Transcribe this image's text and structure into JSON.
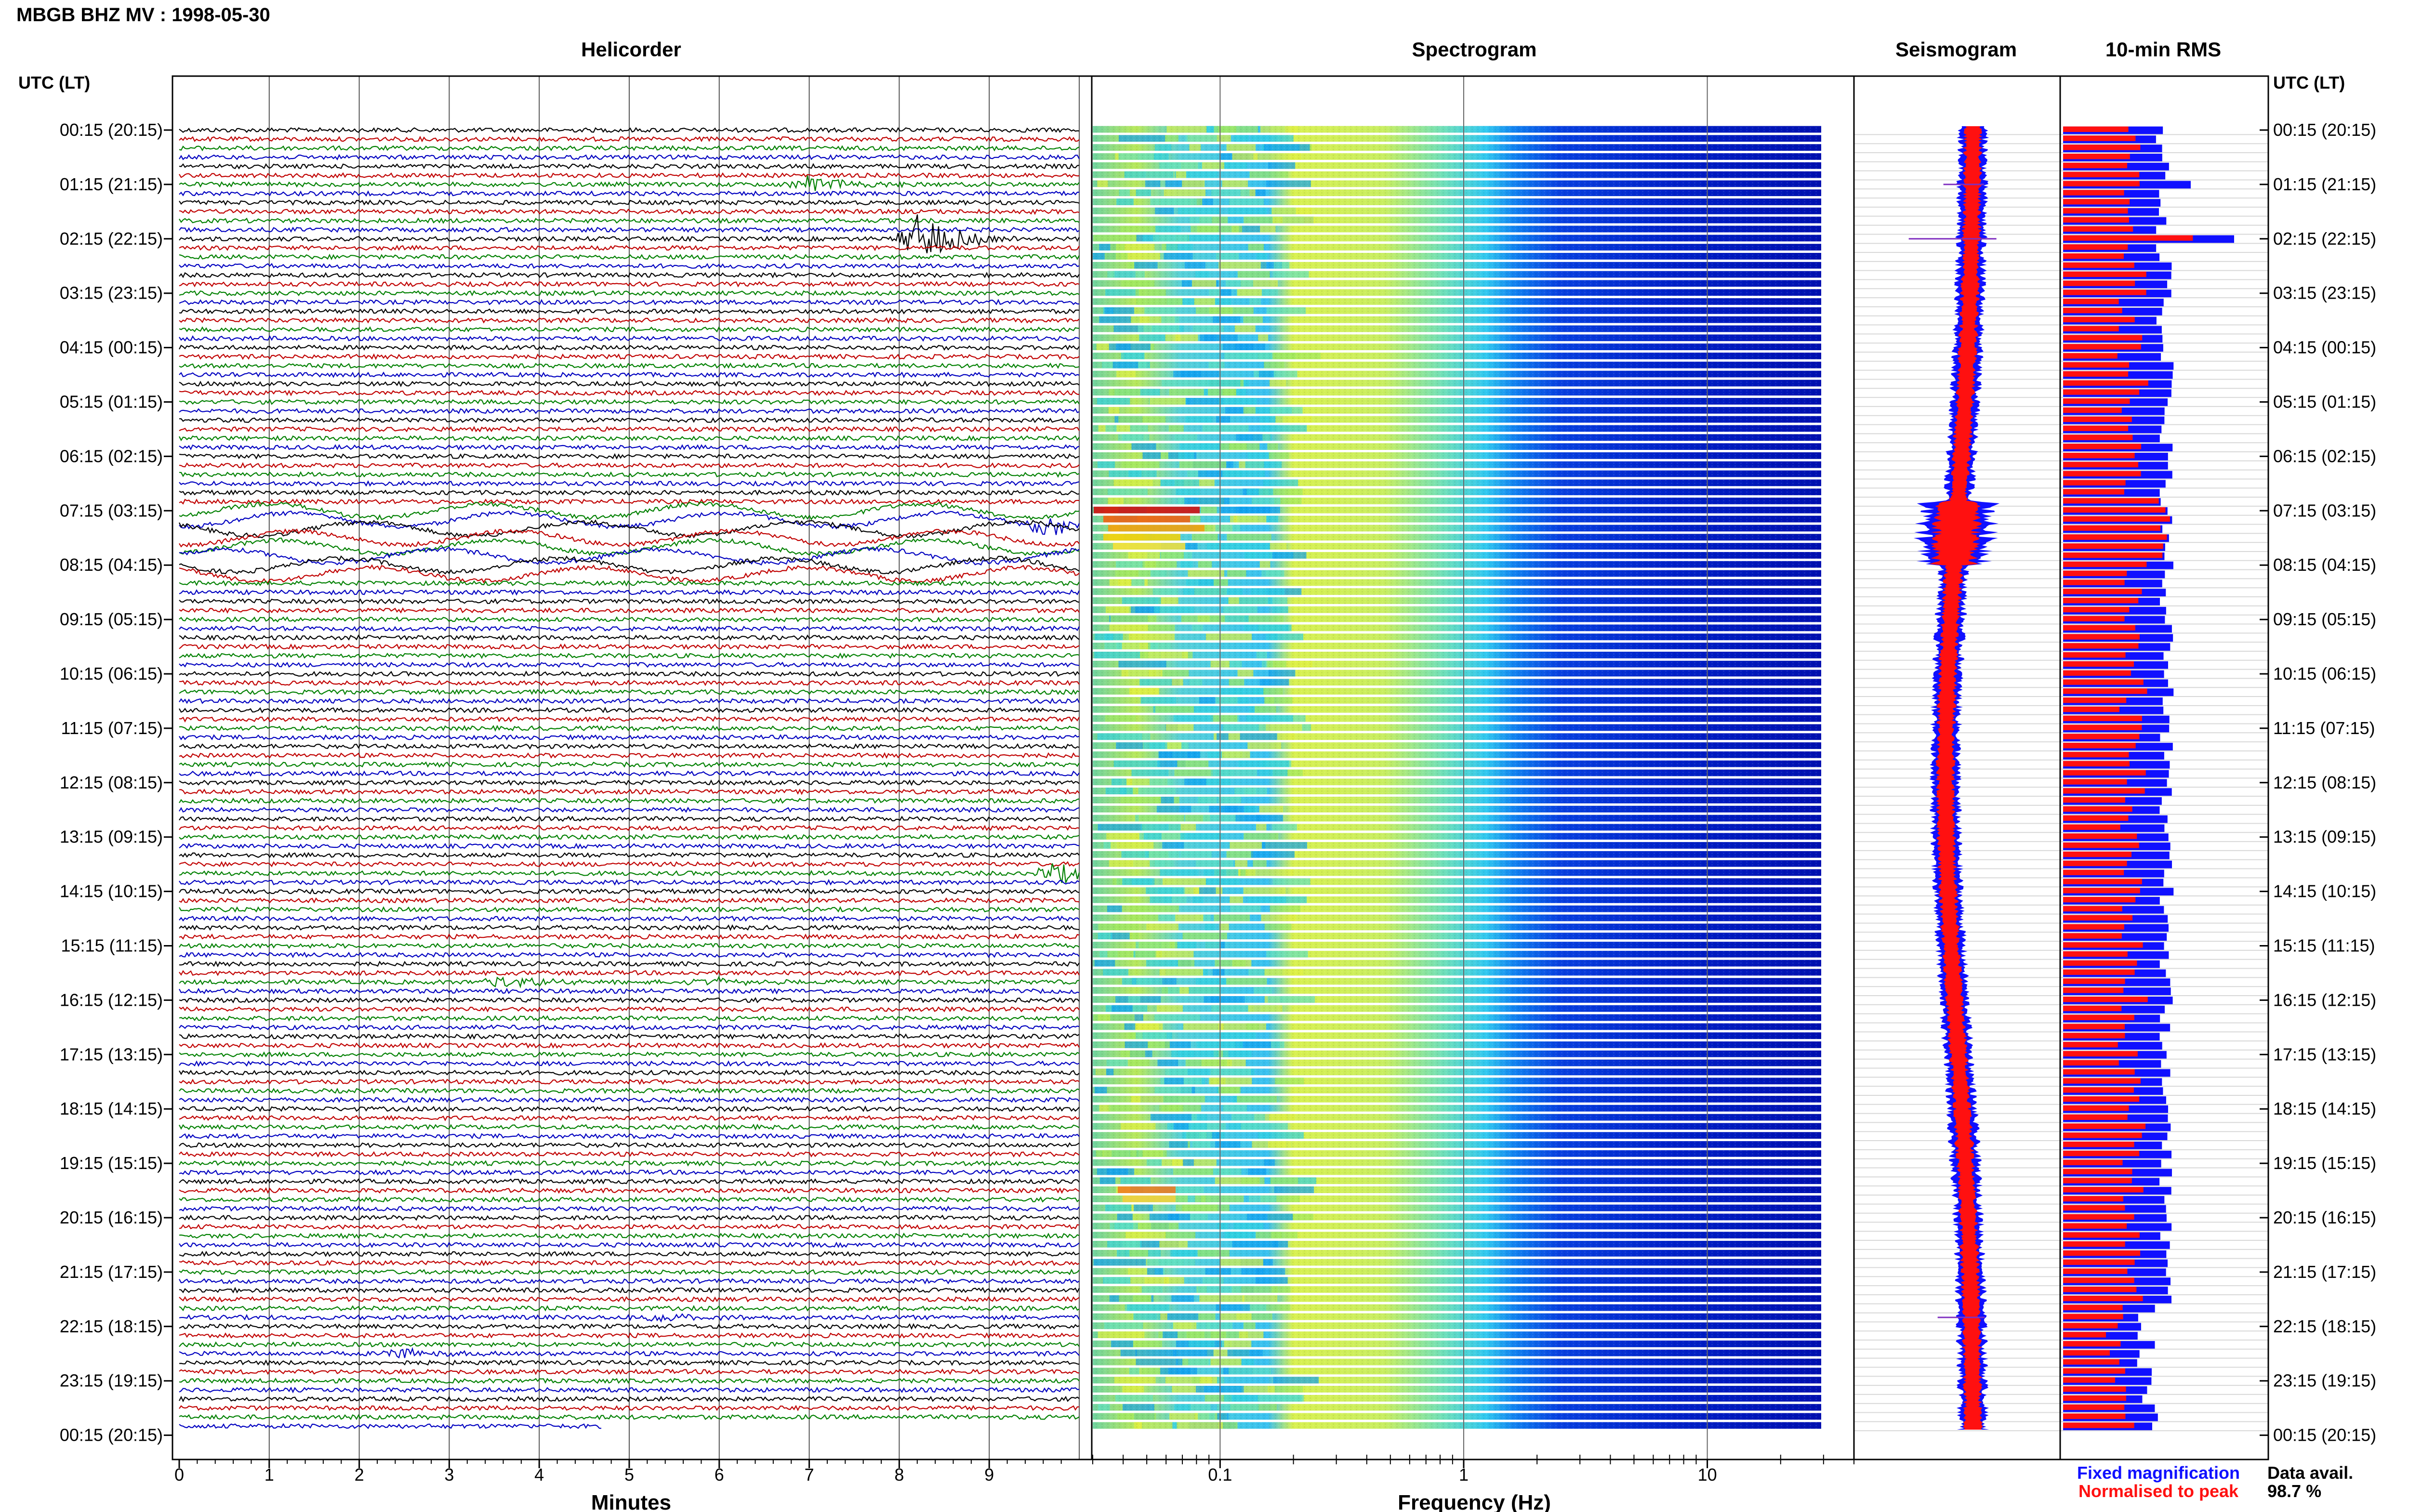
{
  "header": {
    "title": "MBGB BHZ MV : 1998-05-30"
  },
  "panels": {
    "helicorder": "Helicorder",
    "spectrogram": "Spectrogram",
    "seismogram": "Seismogram",
    "rms": "10-min RMS"
  },
  "axes": {
    "left_label": "UTC (LT)",
    "right_label": "UTC (LT)",
    "helicorder_xlabel": "Minutes",
    "spectrogram_xlabel": "Frequency (Hz)"
  },
  "legend": {
    "fixed": "Fixed magnification",
    "normalised": "Normalised to peak",
    "colors": {
      "fixed": "#1010ff",
      "normalised": "#ff1010"
    }
  },
  "availability": {
    "label": "Data avail.",
    "value": "98.7 %"
  },
  "chart_data": {
    "type": "heatmap",
    "title": "MBGB BHZ MV : 1998-05-30",
    "time_labels": [
      "00:15 (20:15)",
      "01:15 (21:15)",
      "02:15 (22:15)",
      "03:15 (23:15)",
      "04:15 (00:15)",
      "05:15 (01:15)",
      "06:15 (02:15)",
      "07:15 (03:15)",
      "08:15 (04:15)",
      "09:15 (05:15)",
      "10:15 (06:15)",
      "11:15 (07:15)",
      "12:15 (08:15)",
      "13:15 (09:15)",
      "14:15 (10:15)",
      "15:15 (11:15)",
      "16:15 (12:15)",
      "17:15 (13:15)",
      "18:15 (14:15)",
      "19:15 (15:15)",
      "20:15 (16:15)",
      "21:15 (17:15)",
      "22:15 (18:15)",
      "23:15 (19:15)",
      "00:15 (20:15)"
    ],
    "helicorder": {
      "xlabel": "Minutes",
      "xticks": [
        "0",
        "1",
        "2",
        "3",
        "4",
        "5",
        "6",
        "7",
        "8",
        "9"
      ],
      "xlim": [
        0,
        10
      ],
      "traces_per_hour": 6,
      "trace_colors": [
        "#000000",
        "#c00000",
        "#008000",
        "#0000c0"
      ],
      "events": [
        {
          "trace": 6,
          "minute": 7.0,
          "amplitude": 0.6
        },
        {
          "trace": 12,
          "minute": 8.2,
          "amplitude": 1.6
        },
        {
          "trace": 43,
          "minute": 9.6,
          "amplitude": 0.6
        },
        {
          "trace": 82,
          "minute": 9.7,
          "amplitude": 0.7
        },
        {
          "trace": 94,
          "minute": 3.6,
          "amplitude": 0.4
        },
        {
          "trace": 94,
          "minute": 5.8,
          "amplitude": 0.3
        },
        {
          "trace": 131,
          "minute": 5.2,
          "amplitude": 0.4
        },
        {
          "trace": 135,
          "minute": 2.4,
          "amplitude": 0.4
        }
      ],
      "long_period_rows": [
        42,
        43,
        44,
        45,
        46,
        47,
        48,
        49
      ]
    },
    "spectrogram": {
      "xlabel": "Frequency (Hz)",
      "xticks": [
        "0.1",
        "1",
        "10"
      ],
      "xscale": "log",
      "xlim": [
        0.03,
        40
      ],
      "colormap": "jet"
    },
    "seismogram": {
      "series": [
        {
          "name": "Fixed magnification",
          "color": "#1010ff"
        },
        {
          "name": "Normalised to peak",
          "color": "#ff1010"
        }
      ]
    },
    "rms": {
      "title": "10-min RMS",
      "series": [
        {
          "name": "Fixed magnification",
          "color": "#1010ff"
        },
        {
          "name": "Normalised to peak",
          "color": "#ff1010"
        }
      ]
    }
  }
}
